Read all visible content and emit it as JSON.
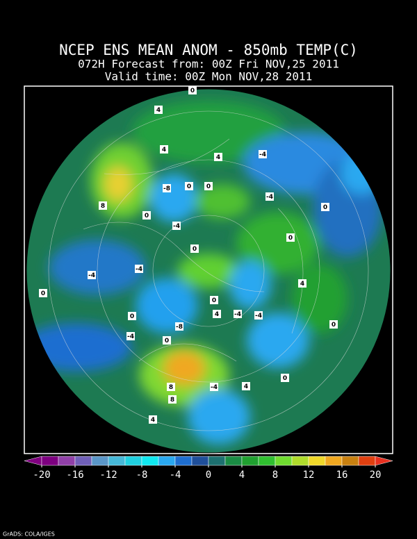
{
  "header": {
    "title": "NCEP ENS MEAN ANOM - 850mb TEMP(C)",
    "lines": [
      "072H Forecast from: 00Z Fri NOV,25 2011",
      "Valid time: 00Z Mon NOV,28 2011"
    ]
  },
  "map": {
    "contour_labels": [
      "0",
      "4",
      "4",
      "4",
      "-4",
      "8",
      "-8",
      "0",
      "0",
      "-4",
      "0",
      "0",
      "-4",
      "0",
      "0",
      "-4",
      "-4",
      "4",
      "0",
      "0",
      "0",
      "-8",
      "4",
      "-4",
      "-4",
      "0",
      "-4",
      "0",
      "0",
      "8",
      "-4",
      "4",
      "8",
      "4"
    ]
  },
  "colorbar": {
    "ticks": [
      -20,
      -16,
      -12,
      -8,
      -4,
      0,
      4,
      8,
      12,
      16,
      20
    ],
    "colors": [
      "#7d0080",
      "#9040a8",
      "#7060b8",
      "#5a96c8",
      "#46b8d8",
      "#20d0e0",
      "#10e8f0",
      "#2aa8f0",
      "#1e6ed0",
      "#1f4f9a",
      "#1d7070",
      "#1a8c44",
      "#20a030",
      "#30c030",
      "#70dc30",
      "#b0dc2c",
      "#f0d82a",
      "#f0a820",
      "#c88010",
      "#e04010"
    ],
    "under_color": "#800080",
    "over_color": "#e83020"
  },
  "footer": "GrADS: COLA/IGES"
}
